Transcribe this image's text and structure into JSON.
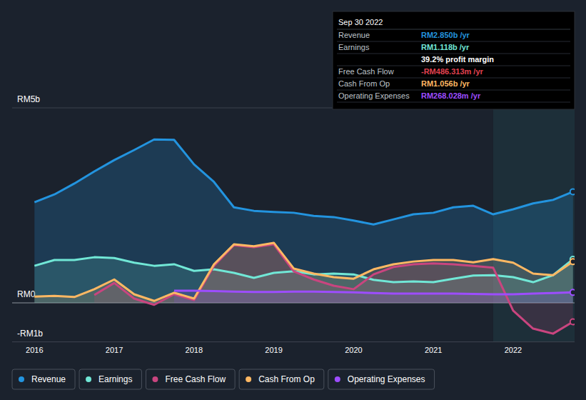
{
  "chart_data": {
    "type": "line",
    "x": [
      2016,
      2016.25,
      2016.5,
      2016.75,
      2017,
      2017.25,
      2017.5,
      2017.75,
      2018,
      2018.25,
      2018.5,
      2018.75,
      2019,
      2019.25,
      2019.5,
      2019.75,
      2020,
      2020.25,
      2020.5,
      2020.75,
      2021,
      2021.25,
      2021.5,
      2021.75,
      2022,
      2022.25,
      2022.5,
      2022.75
    ],
    "xlim": [
      2015.72,
      2022.77
    ],
    "xticks": [
      2016,
      2017,
      2018,
      2019,
      2020,
      2021,
      2022
    ],
    "ylim": [
      -1,
      5
    ],
    "yticks": [
      {
        "value": -1,
        "label": "-RM1b"
      },
      {
        "value": 0,
        "label": "RM0"
      },
      {
        "value": 5,
        "label": "RM5b"
      }
    ],
    "grid": true,
    "legend": "bottom",
    "series": [
      {
        "name": "Revenue",
        "color": "#2394df",
        "values": [
          2.58,
          2.78,
          3.06,
          3.37,
          3.66,
          3.92,
          4.19,
          4.18,
          3.55,
          3.1,
          2.45,
          2.36,
          2.33,
          2.31,
          2.23,
          2.2,
          2.11,
          2.01,
          2.14,
          2.27,
          2.31,
          2.45,
          2.49,
          2.27,
          2.4,
          2.55,
          2.64,
          2.85
        ]
      },
      {
        "name": "Earnings",
        "color": "#71e7d6",
        "values": [
          0.95,
          1.1,
          1.1,
          1.17,
          1.15,
          1.03,
          0.95,
          0.99,
          0.82,
          0.86,
          0.77,
          0.64,
          0.77,
          0.81,
          0.73,
          0.75,
          0.73,
          0.59,
          0.53,
          0.55,
          0.53,
          0.62,
          0.7,
          0.71,
          0.66,
          0.53,
          0.71,
          1.118
        ]
      },
      {
        "name": "Free Cash Flow",
        "color": "#c9457f",
        "values": [
          null,
          null,
          null,
          0.2,
          0.51,
          0.11,
          -0.05,
          0.22,
          0.07,
          0.95,
          1.48,
          1.43,
          1.5,
          0.81,
          0.6,
          0.44,
          0.35,
          0.73,
          0.92,
          0.99,
          1.01,
          0.99,
          0.95,
          0.9,
          -0.2,
          -0.66,
          -0.79,
          -0.486
        ]
      },
      {
        "name": "Cash From Op",
        "color": "#ffb863",
        "values": [
          0.16,
          0.18,
          0.15,
          0.35,
          0.6,
          0.22,
          0.05,
          0.26,
          0.11,
          0.99,
          1.5,
          1.45,
          1.54,
          0.88,
          0.75,
          0.66,
          0.62,
          0.86,
          0.99,
          1.06,
          1.1,
          1.1,
          1.04,
          1.12,
          1.03,
          0.75,
          0.71,
          1.056
        ]
      },
      {
        "name": "Operating Expenses",
        "color": "#9d4dff",
        "values": [
          null,
          null,
          null,
          null,
          null,
          null,
          null,
          0.31,
          0.31,
          0.3,
          0.29,
          0.28,
          0.28,
          0.29,
          0.29,
          0.28,
          0.27,
          0.25,
          0.24,
          0.24,
          0.24,
          0.24,
          0.23,
          0.22,
          0.22,
          0.24,
          0.25,
          0.268
        ]
      }
    ],
    "annotation": {
      "title": "Sep 30 2022",
      "rows": [
        {
          "label": "Revenue",
          "value": "RM2.850b /yr",
          "color": "#2394df"
        },
        {
          "label": "Earnings",
          "value": "RM1.118b /yr",
          "color": "#71e7d6"
        },
        {
          "label": "Free Cash Flow",
          "value": "-RM486.313m /yr",
          "color": "#e0414f"
        },
        {
          "label": "Cash From Op",
          "value": "RM1.056b /yr",
          "color": "#ffb863"
        },
        {
          "label": "Operating Expenses",
          "value": "RM268.028m /yr",
          "color": "#9d4dff"
        }
      ],
      "note": "39.2% profit margin"
    }
  }
}
